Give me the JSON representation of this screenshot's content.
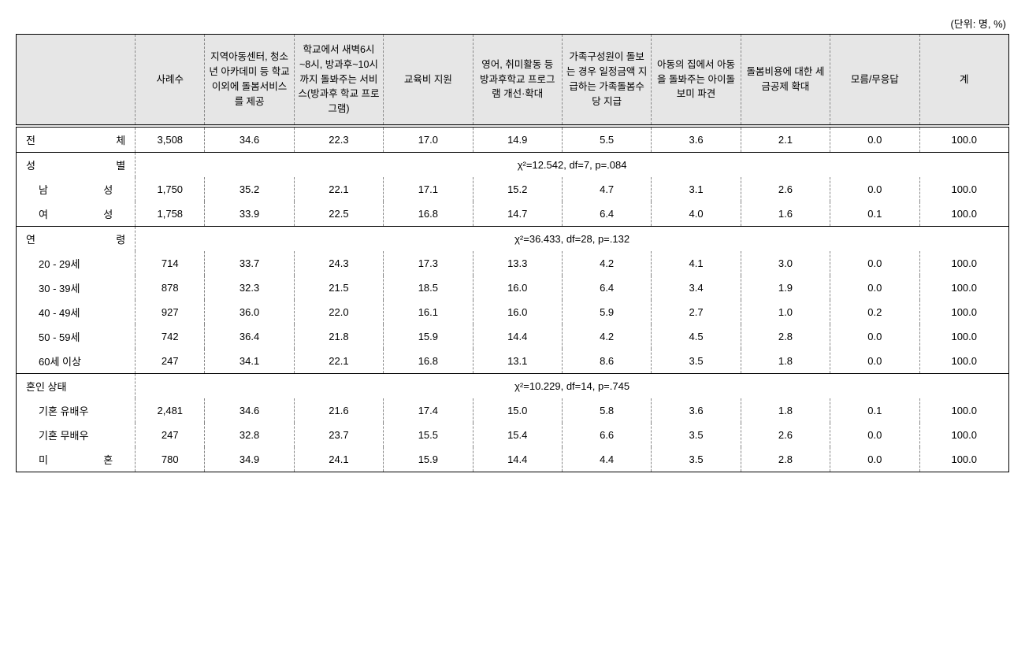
{
  "unit_label": "(단위: 명, %)",
  "columns": {
    "c0": "",
    "c1": "사례수",
    "c2": "지역아동센터, 청소년 아카데미 등 학교이외에 돌봄서비스를 제공",
    "c3": "학교에서 새벽6시~8시, 방과후~10시까지 돌봐주는 서비스(방과후 학교 프로그램)",
    "c4": "교육비 지원",
    "c5": "영어, 취미활동 등 방과후학교 프로그램 개선·확대",
    "c6": "가족구성원이 돌보는 경우 일정금액 지급하는 가족돌봄수당 지급",
    "c7": "아동의 집에서 아동을 돌봐주는 아이돌보미 파견",
    "c8": "돌봄비용에 대한 세금공제 확대",
    "c9": "모름/무응답",
    "c10": "계"
  },
  "stats": {
    "gender": "χ²=12.542,  df=7,  p=.084",
    "age": "χ²=36.433,  df=28,  p=.132",
    "marital": "χ²=10.229,  df=14,  p=.745"
  },
  "labels": {
    "total": "전 체",
    "gender": "성 별",
    "male": "남 성",
    "female": "여 성",
    "age": "연 령",
    "a20": "20 - 29세",
    "a30": "30 - 39세",
    "a40": "40 - 49세",
    "a50": "50 - 59세",
    "a60": "60세 이상",
    "marital": "혼인 상태",
    "m1": "기혼 유배우",
    "m2": "기혼 무배우",
    "m3": "미 혼"
  },
  "rows": {
    "total": [
      "3,508",
      "34.6",
      "22.3",
      "17.0",
      "14.9",
      "5.5",
      "3.6",
      "2.1",
      "0.0",
      "100.0"
    ],
    "male": [
      "1,750",
      "35.2",
      "22.1",
      "17.1",
      "15.2",
      "4.7",
      "3.1",
      "2.6",
      "0.0",
      "100.0"
    ],
    "female": [
      "1,758",
      "33.9",
      "22.5",
      "16.8",
      "14.7",
      "6.4",
      "4.0",
      "1.6",
      "0.1",
      "100.0"
    ],
    "a20": [
      "714",
      "33.7",
      "24.3",
      "17.3",
      "13.3",
      "4.2",
      "4.1",
      "3.0",
      "0.0",
      "100.0"
    ],
    "a30": [
      "878",
      "32.3",
      "21.5",
      "18.5",
      "16.0",
      "6.4",
      "3.4",
      "1.9",
      "0.0",
      "100.0"
    ],
    "a40": [
      "927",
      "36.0",
      "22.0",
      "16.1",
      "16.0",
      "5.9",
      "2.7",
      "1.0",
      "0.2",
      "100.0"
    ],
    "a50": [
      "742",
      "36.4",
      "21.8",
      "15.9",
      "14.4",
      "4.2",
      "4.5",
      "2.8",
      "0.0",
      "100.0"
    ],
    "a60": [
      "247",
      "34.1",
      "22.1",
      "16.8",
      "13.1",
      "8.6",
      "3.5",
      "1.8",
      "0.0",
      "100.0"
    ],
    "m1": [
      "2,481",
      "34.6",
      "21.6",
      "17.4",
      "15.0",
      "5.8",
      "3.6",
      "1.8",
      "0.1",
      "100.0"
    ],
    "m2": [
      "247",
      "32.8",
      "23.7",
      "15.5",
      "15.4",
      "6.6",
      "3.5",
      "2.6",
      "0.0",
      "100.0"
    ],
    "m3": [
      "780",
      "34.9",
      "24.1",
      "15.9",
      "14.4",
      "4.4",
      "3.5",
      "2.8",
      "0.0",
      "100.0"
    ]
  }
}
